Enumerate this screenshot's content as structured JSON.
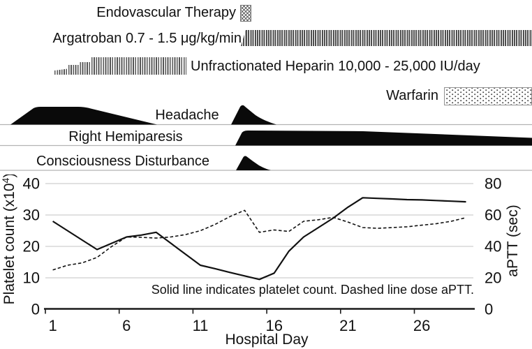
{
  "timeline": {
    "endovascular_label": "Endovascular Therapy",
    "argatroban_label": "Argatroban 0.7 - 1.5 μg/kg/min",
    "heparin_label": "Unfractionated Heparin 10,000 - 25,000 IU/day",
    "warfarin_label": "Warfarin"
  },
  "symptoms": {
    "headache_label": "Headache",
    "hemiparesis_label": "Right Hemiparesis",
    "consciousness_label": "Consciousness Disturbance"
  },
  "chart_data": {
    "type": "line",
    "x": [
      1,
      2,
      3,
      4,
      5,
      6,
      7,
      8,
      9,
      10,
      11,
      12,
      13,
      14,
      15,
      16,
      17,
      18,
      19,
      20,
      21,
      22,
      23,
      24,
      25,
      26,
      27,
      28,
      29
    ],
    "x_ticks": [
      1,
      6,
      11,
      16,
      21,
      26
    ],
    "xlabel": "Hospital Day",
    "left_axis": {
      "label_main": "Platelet count (x10",
      "label_sup": "4",
      "label_end": ")",
      "ticks": [
        0,
        10,
        20,
        30,
        40
      ],
      "range": [
        0,
        40
      ]
    },
    "right_axis": {
      "label": "aPTT (sec)",
      "ticks": [
        0,
        20,
        40,
        60,
        80
      ],
      "range": [
        0,
        80
      ]
    },
    "annotation": "Solid line indicates platelet count. Dashed line dose aPTT.",
    "grid": true,
    "series": [
      {
        "name": "Platelet count",
        "style": "solid",
        "axis": "left",
        "values": [
          28,
          25,
          22,
          19,
          21,
          23,
          23.6,
          24.5,
          21,
          17.5,
          14,
          12.9,
          11.7,
          10.6,
          9.5,
          11.5,
          18.5,
          23,
          26,
          29,
          32.5,
          35.5,
          35.3,
          35.1,
          34.9,
          34.8,
          34.6,
          34.4,
          34.2
        ]
      },
      {
        "name": "aPTT",
        "style": "dashed",
        "axis": "right",
        "values": [
          25,
          28,
          29.5,
          33,
          40,
          46,
          45.8,
          45.3,
          46,
          47.5,
          50,
          54,
          59,
          63,
          49,
          50.5,
          49.5,
          56,
          57,
          58.5,
          55.5,
          52,
          51.5,
          52,
          52.5,
          53.5,
          54.5,
          56,
          58.3
        ]
      }
    ]
  },
  "colors": {
    "line": "#111111",
    "grid": "#cfcfcf",
    "baseline": "#b3b3b3",
    "bar_stripe": "#4d4d4d"
  }
}
